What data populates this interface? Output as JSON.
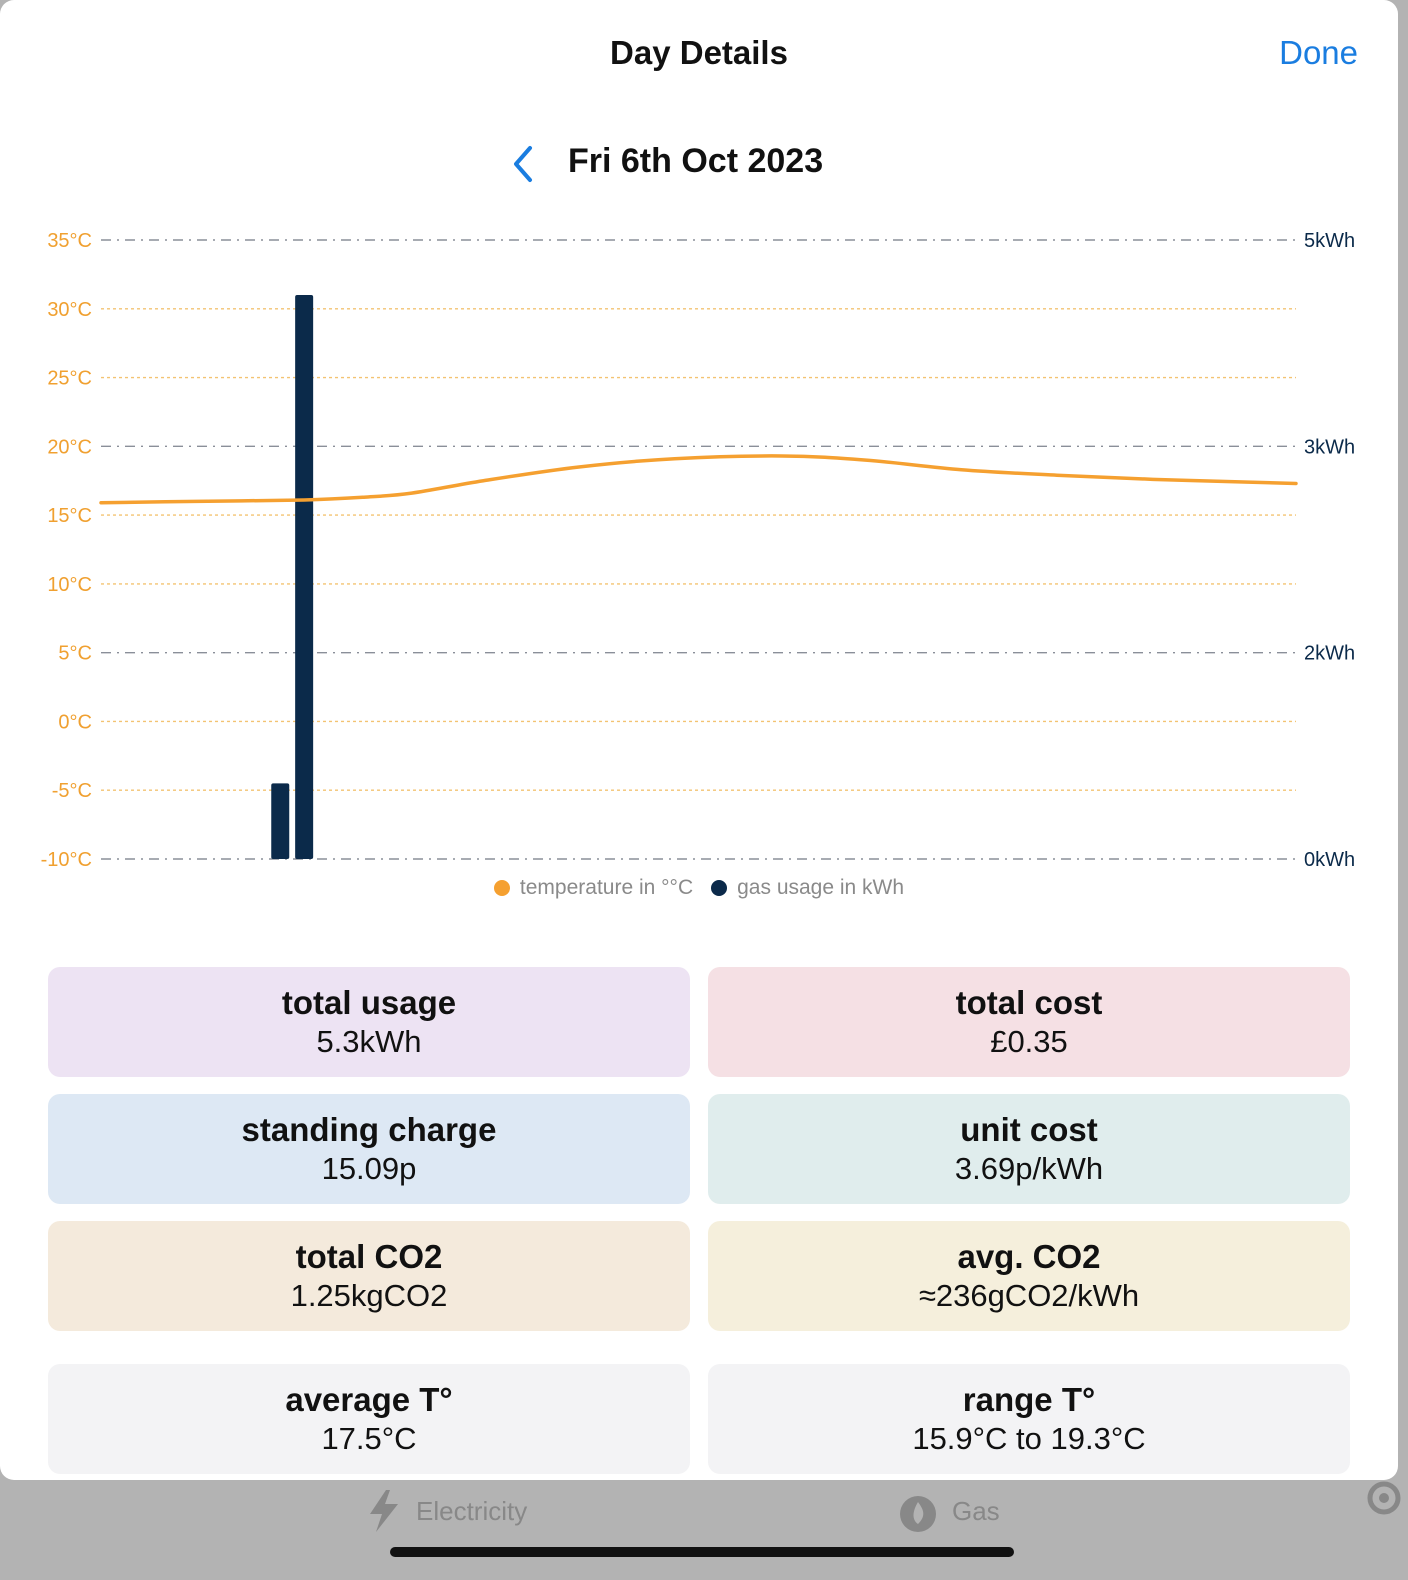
{
  "background_tabs": {
    "electricity_label": "Electricity",
    "gas_label": "Gas"
  },
  "sheet": {
    "title": "Day Details",
    "done_label": "Done",
    "date": "Fri 6th Oct 2023"
  },
  "chart_data": {
    "type": "bar+line",
    "left_axis": {
      "ticks": [
        "35°C",
        "30°C",
        "25°C",
        "20°C",
        "15°C",
        "10°C",
        "5°C",
        "0°C",
        "-5°C",
        "-10°C"
      ],
      "range": [
        -10,
        35
      ],
      "color": "#f0a030"
    },
    "right_axis": {
      "ticks": [
        "5kWh",
        "3kWh",
        "2kWh",
        "0kWh"
      ],
      "color": "#0b2a4a"
    },
    "bars": [
      {
        "hour": 7.5,
        "value_c_scale": -4.5,
        "label": "gas usage"
      },
      {
        "hour": 8.5,
        "value_c_scale": 31,
        "label": "gas usage"
      }
    ],
    "temperature_line": [
      [
        0,
        15.9
      ],
      [
        4,
        16.0
      ],
      [
        8.5,
        16.1
      ],
      [
        11,
        16.3
      ],
      [
        13,
        16.6
      ],
      [
        16,
        17.5
      ],
      [
        20,
        18.5
      ],
      [
        24,
        19.1
      ],
      [
        28.5,
        19.3
      ],
      [
        32,
        19.0
      ],
      [
        36,
        18.3
      ],
      [
        40,
        17.9
      ],
      [
        44,
        17.6
      ],
      [
        48,
        17.4
      ],
      [
        50,
        17.3
      ]
    ],
    "legend": [
      {
        "label": "temperature in °°C",
        "color": "#f5a030"
      },
      {
        "label": "gas usage in kWh",
        "color": "#0b2a4a"
      }
    ],
    "grid": true
  },
  "cards": [
    {
      "label": "total usage",
      "value": "5.3kWh",
      "color": "#ede3f3"
    },
    {
      "label": "total cost",
      "value": "£0.35",
      "color": "#f5e0e4"
    },
    {
      "label": "standing charge",
      "value": "15.09p",
      "color": "#dde8f4"
    },
    {
      "label": "unit cost",
      "value": "3.69p/kWh",
      "color": "#e0eded"
    },
    {
      "label": "total CO2",
      "value": "1.25kgCO2",
      "color": "#f4eadc"
    },
    {
      "label": "avg. CO2",
      "value": "≈236gCO2/kWh",
      "color": "#f5efdc"
    },
    {
      "label": "average T°",
      "value": "17.5°C",
      "color": "#f3f3f5"
    },
    {
      "label": "range T°",
      "value": "15.9°C to 19.3°C",
      "color": "#f3f3f5"
    }
  ]
}
